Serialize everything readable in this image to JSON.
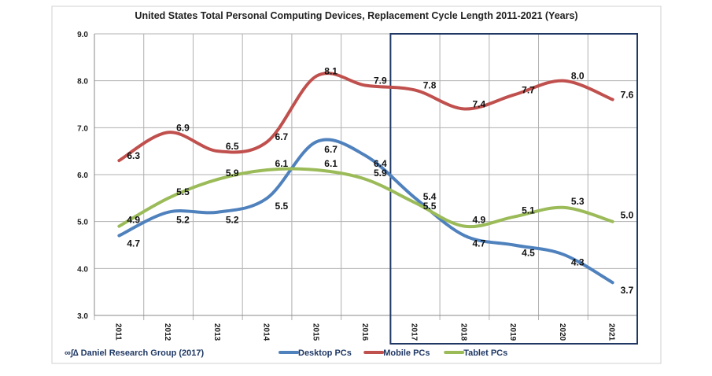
{
  "chart_data": {
    "type": "line",
    "title": "United States Total Personal Computing Devices, Replacement Cycle Length 2011-2021 (Years)",
    "categories": [
      "2011",
      "2012",
      "2013",
      "2014",
      "2015",
      "2016",
      "2017",
      "2018",
      "2019",
      "2020",
      "2021"
    ],
    "ylim": [
      3.0,
      9.0
    ],
    "yticks": [
      "3.0",
      "4.0",
      "5.0",
      "6.0",
      "7.0",
      "8.0",
      "9.0"
    ],
    "grid": true,
    "legend_position": "bottom",
    "series": [
      {
        "name": "Desktop PCs",
        "color": "#4f81bd",
        "values": [
          4.7,
          5.2,
          5.2,
          5.5,
          6.7,
          6.4,
          5.5,
          4.7,
          4.5,
          4.3,
          3.7
        ]
      },
      {
        "name": "Mobile PCs",
        "color": "#c0504d",
        "values": [
          6.3,
          6.9,
          6.5,
          6.7,
          8.1,
          7.9,
          7.8,
          7.4,
          7.7,
          8.0,
          7.6
        ]
      },
      {
        "name": "Tablet PCs",
        "color": "#9bbb59",
        "values": [
          4.9,
          5.5,
          5.9,
          6.1,
          6.1,
          5.9,
          5.4,
          4.9,
          5.1,
          5.3,
          5.0
        ]
      }
    ],
    "annotation": "Forecast box 2017-2021",
    "source": "∞∫∆ Daniel Research Group (2017)"
  }
}
